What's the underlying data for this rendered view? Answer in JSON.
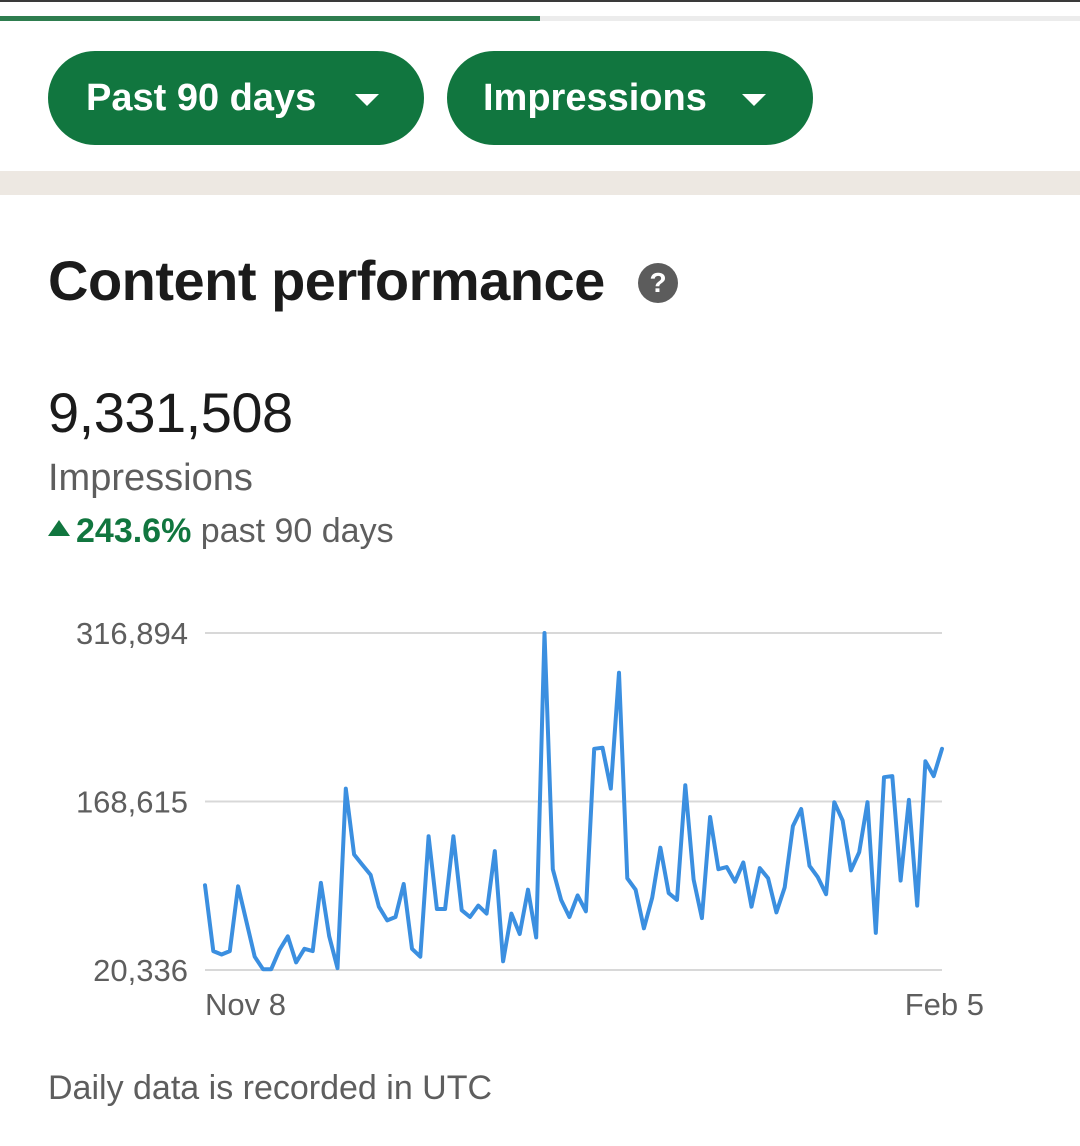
{
  "progress": {
    "fraction": 0.5
  },
  "filters": {
    "range_label": "Past 90 days",
    "metric_label": "Impressions"
  },
  "section": {
    "title": "Content performance",
    "help_glyph": "?"
  },
  "metric": {
    "value": "9,331,508",
    "label": "Impressions",
    "change_pct": "243.6%",
    "change_period": "past 90 days",
    "change_direction": "up"
  },
  "footnote": "Daily data is recorded in UTC",
  "colors": {
    "accent_green": "#11763f",
    "line_blue": "#3b8fe0",
    "divider_band": "#ede8e2"
  },
  "chart_data": {
    "type": "line",
    "title": "",
    "xlabel": "",
    "ylabel": "",
    "x_tick_labels": [
      "Nov 8",
      "Feb 5"
    ],
    "y_tick_labels": [
      "316,894",
      "168,615",
      "20,336"
    ],
    "ylim": [
      20336,
      316894
    ],
    "grid": true,
    "series": [
      {
        "color": "#3b8fe0",
        "values": [
          95000,
          37000,
          34000,
          37000,
          94000,
          63000,
          32000,
          21000,
          21000,
          38000,
          50000,
          27000,
          39000,
          37000,
          97000,
          50000,
          22000,
          180000,
          122000,
          113000,
          104000,
          76000,
          64000,
          67000,
          96000,
          39000,
          32000,
          138000,
          74000,
          74000,
          138000,
          73000,
          67000,
          77000,
          70000,
          125000,
          28000,
          70000,
          52000,
          91000,
          49000,
          316894,
          109000,
          82000,
          67000,
          86000,
          72000,
          215000,
          216000,
          180000,
          282000,
          101000,
          91000,
          57000,
          84000,
          128000,
          88000,
          82000,
          183000,
          100000,
          66000,
          155000,
          109000,
          111000,
          98000,
          115000,
          76000,
          110000,
          101000,
          71000,
          93000,
          147000,
          162000,
          112000,
          102000,
          87000,
          168000,
          152000,
          108000,
          124000,
          168000,
          53000,
          190000,
          191000,
          99000,
          170000,
          77000,
          204000,
          191000,
          215000
        ]
      }
    ]
  }
}
